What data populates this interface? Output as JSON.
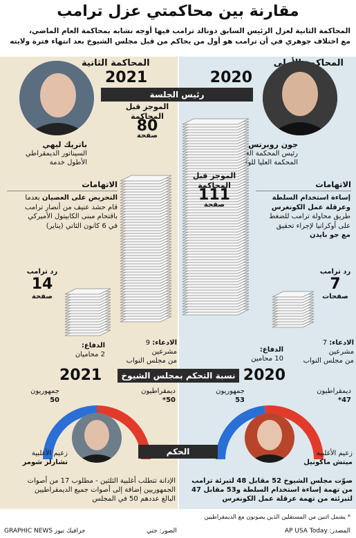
{
  "title": "مقارنة بين محاكمتي عزل ترامب",
  "intro_line1": "المحاكمة الثانية لعزل الرئيس السابق دونالد ترامب فيها أوجه تشابه بمحاكمة العام الماضي،",
  "intro_line2": "مع اختلاف جوهري في أن ترامب هو أول من يحاكم من قبل مجلس الشيوخ بعد انتهاء فترة ولايته",
  "trial2": {
    "label": "المحاكمة الثانية",
    "year": "2021",
    "judge_name": "باتريك ليهي",
    "judge_role_1": "السيناتور الديمقراطي",
    "judge_role_2": "الأطول خدمة",
    "brief_l1": "الموجز قبل",
    "brief_l2": "المحاكمة",
    "brief_pages": "80",
    "brief_unit": "صفحة",
    "charges_title": "الاتهامات",
    "charge_bold": "التحريض على العصيان",
    "charge_l1": " بعدما",
    "charge_l2": "قام حشد عنيف من أنصار ترامب",
    "charge_l3": "باقتحام مبنى الكابيتول الأميركي",
    "charge_l4": "في 6 كانون الثاني (يناير)",
    "reply_label": "رد ترامب",
    "reply_pages": "14",
    "reply_unit": "صفحة",
    "defense_label": "الدفاع:",
    "defense_value": "2 محاميان",
    "prosecution_label": "الادعاء:",
    "prosecution_value_1": " 9 مشرعين",
    "prosecution_value_2": "من مجلس النواب",
    "senate_year": "2021",
    "dem_label": "ديمقراطيون",
    "dem_value": "50*",
    "rep_label": "جمهوريون",
    "rep_value": "50",
    "leader_l1": "زعيم الأغلبية",
    "leader_name": "تشارلز شومر",
    "verdict_l1": "الإدانة تتطلب أغلبية الثلثين - مطلوب 17 من أصوات",
    "verdict_l2": "الجمهوريين إضافة إلى أصوات جميع الديمقراطيين",
    "verdict_l3": "البالغ عددهم 50 في المجلس"
  },
  "trial1": {
    "label": "المحاكمة الأولى",
    "year": "2020",
    "judge_name": "جون روبرتس",
    "judge_role_1": "رئيس المحكمة العليا،",
    "judge_role_2": "المحكمة العليا للولايات المتحدة",
    "brief_l1": "الموجز قبل",
    "brief_l2": "المحاكمة",
    "brief_pages": "111",
    "brief_unit": "صفحة",
    "charges_title": "الاتهامات",
    "charge_l1": "إساءة استخدام السلطة",
    "charge_l2": "وعرقلة عمل الكونغرس",
    "charge_l3": "طريق محاولة ترامب للضغط",
    "charge_l4": "على أوكرانيا لإجراء تحقيق",
    "charge_l5": "مع جو بايدن",
    "reply_label": "رد ترامب",
    "reply_pages": "7",
    "reply_unit": "صفحات",
    "defense_label": "الدفاع:",
    "defense_value": "10 محامين",
    "prosecution_label": "الادعاء:",
    "prosecution_value_1": " 7 مشرعين",
    "prosecution_value_2": "من مجلس النواب",
    "senate_year": "2020",
    "dem_label": "ديمقراطيون",
    "dem_value": "47*",
    "rep_label": "جمهوريون",
    "rep_value": "53",
    "leader_l1": "زعيم الأغلبية",
    "leader_name": "ميتش ماكونيل",
    "verdict_l1": "صوّت مجلس الشيوخ 52 مقابل 48 لتبرئة ترامب",
    "verdict_l2": "من تهمة إساءة استخدام السلطة و53 مقابل 47",
    "verdict_l3": "لتبرئته من تهمة عرقلة عمل الكونغرس"
  },
  "banners": {
    "presiding": "رئيس الجلسة",
    "senate": "نسبة التحكم بمجلس الشيوخ",
    "verdict": "الحكم"
  },
  "footnote": "* يشمل اثنين من المستقلين الذين يصوتون مع الديمقراطيين",
  "source": "المصدر: AP USA Today",
  "images": "الصور: جتي",
  "credit": "GRAPHIC NEWS جرافيك نيوز",
  "colors": {
    "democrat": "#e23b2b",
    "republican": "#2a6fd6",
    "dark": "#2b2b2b"
  },
  "chart_data": {
    "type": "pie",
    "series": [
      {
        "year": "2021",
        "dem": 50,
        "rep": 50
      },
      {
        "year": "2020",
        "dem": 47,
        "rep": 53
      }
    ]
  }
}
